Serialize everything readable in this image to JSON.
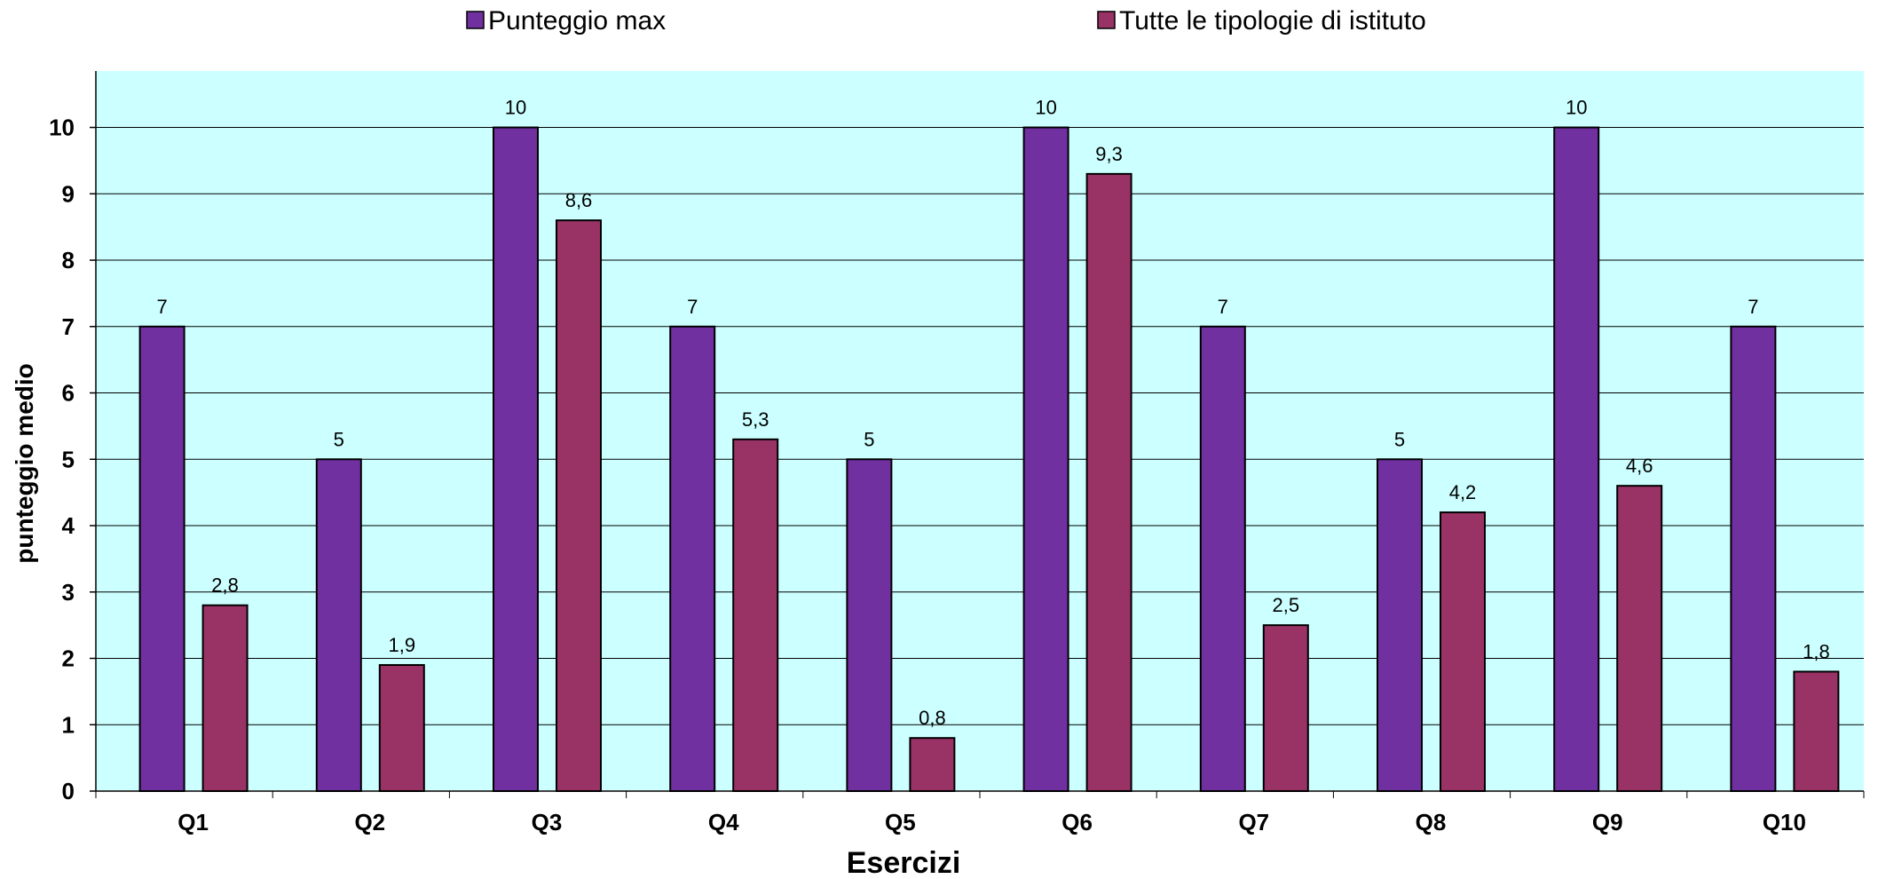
{
  "chart_data": {
    "type": "bar",
    "xlabel": "Esercizi",
    "ylabel": "punteggio  medio",
    "ylim": [
      0,
      10.85
    ],
    "yticks": [
      "0",
      "1",
      "2",
      "3",
      "4",
      "5",
      "6",
      "7",
      "8",
      "9",
      "10"
    ],
    "grid": true,
    "legend_position": "top",
    "plot_background": "#ccffff",
    "categories": [
      "Q1",
      "Q2",
      "Q3",
      "Q4",
      "Q5",
      "Q6",
      "Q7",
      "Q8",
      "Q9",
      "Q10"
    ],
    "series": [
      {
        "name": "Punteggio max",
        "color": "#7030a0",
        "values": [
          7,
          5,
          10,
          7,
          5,
          10,
          7,
          5,
          10,
          7
        ],
        "labels": [
          "7",
          "5",
          "10",
          "7",
          "5",
          "10",
          "7",
          "5",
          "10",
          "7"
        ]
      },
      {
        "name": "Tutte le tipologie di istituto",
        "color": "#993366",
        "values": [
          2.8,
          1.9,
          8.6,
          5.3,
          0.8,
          9.3,
          2.5,
          4.2,
          4.6,
          1.8
        ],
        "labels": [
          "2,8",
          "1,9",
          "8,6",
          "5,3",
          "0,8",
          "9,3",
          "2,5",
          "4,2",
          "4,6",
          "1,8"
        ]
      }
    ]
  }
}
